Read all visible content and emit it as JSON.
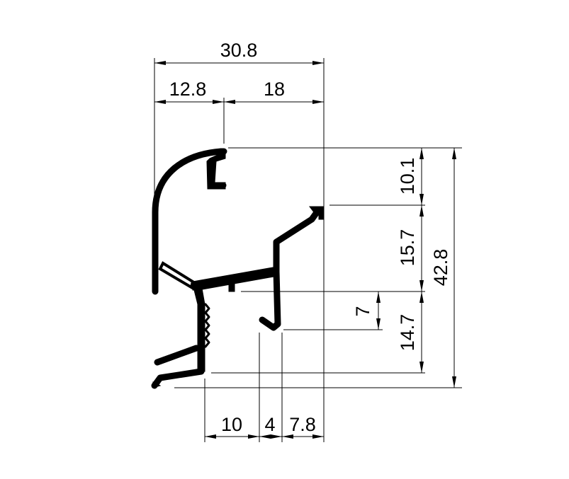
{
  "colors": {
    "ink": "#000000",
    "background": "#ffffff"
  },
  "dimensions": {
    "overall_width": "30.8",
    "top_left_width": "12.8",
    "top_right_width": "18",
    "right_top_height": "10.1",
    "right_mid_height": "15.7",
    "right_bottom_height": "14.7",
    "overall_height": "42.8",
    "inner_height": "7",
    "bottom_left": "10",
    "bottom_mid": "4",
    "bottom_right": "7.8"
  }
}
